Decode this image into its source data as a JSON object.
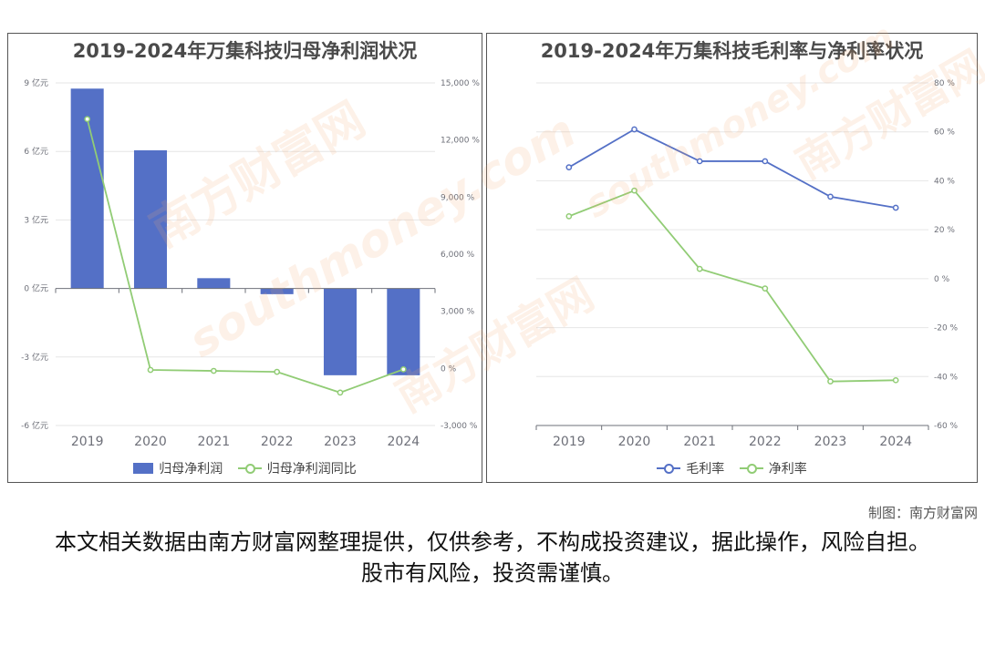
{
  "colors": {
    "bar": "#5470c6",
    "line_green": "#91cc75",
    "line_blue": "#5470c6",
    "axis": "#6e7079",
    "grid": "#e6e6e6"
  },
  "watermark": {
    "text_cn": "南方财富网",
    "text_en": "southmoney.com"
  },
  "credit": "制图：南方财富网",
  "disclaimer": "本文相关数据由南方财富网整理提供，仅供参考，不构成投资建议，据此操作，风险自担。股市有风险，投资需谨慎。",
  "chart_data": [
    {
      "type": "bar",
      "title": "2019-2024年万集科技归母净利润状况",
      "categories": [
        "2019",
        "2020",
        "2021",
        "2022",
        "2023",
        "2024"
      ],
      "y_left": {
        "ticks": [
          "9 亿元",
          "6 亿元",
          "3 亿元",
          "0 亿元",
          "-3 亿元",
          "-6 亿元"
        ],
        "tick_values": [
          9,
          6,
          3,
          0,
          -3,
          -6
        ],
        "ylim": [
          -6,
          9
        ]
      },
      "y_right": {
        "ticks": [
          "15,000 %",
          "12,000 %",
          "9,000 %",
          "6,000 %",
          "3,000 %",
          "0 %",
          "-3,000 %"
        ],
        "tick_values": [
          15000,
          12000,
          9000,
          6000,
          3000,
          0,
          -3000
        ],
        "ylim": [
          -3000,
          15000
        ]
      },
      "series": [
        {
          "name": "归母净利润",
          "type": "bar",
          "axis": "left",
          "values": [
            8.75,
            6.05,
            0.45,
            -0.25,
            -3.8,
            -3.8
          ]
        },
        {
          "name": "归母净利润同比",
          "type": "line",
          "axis": "right",
          "values": [
            13100,
            -80,
            -130,
            -180,
            -1270,
            -50
          ]
        }
      ],
      "legend_position": "bottom-center",
      "grid": true
    },
    {
      "type": "line",
      "title": "2019-2024年万集科技毛利率与净利率状况",
      "categories": [
        "2019",
        "2020",
        "2021",
        "2022",
        "2023",
        "2024"
      ],
      "y_right": {
        "ticks": [
          "80 %",
          "60 %",
          "40 %",
          "20 %",
          "0 %",
          "-20 %",
          "-40 %",
          "-60 %"
        ],
        "tick_values": [
          80,
          60,
          40,
          20,
          0,
          -20,
          -40,
          -60
        ],
        "ylim": [
          -60,
          80
        ]
      },
      "series": [
        {
          "name": "毛利率",
          "values": [
            45.5,
            61,
            48,
            48,
            33.5,
            29
          ]
        },
        {
          "name": "净利率",
          "values": [
            25.5,
            36,
            4,
            -4,
            -42,
            -41.5
          ]
        }
      ],
      "legend_position": "bottom-center",
      "grid": true
    }
  ]
}
